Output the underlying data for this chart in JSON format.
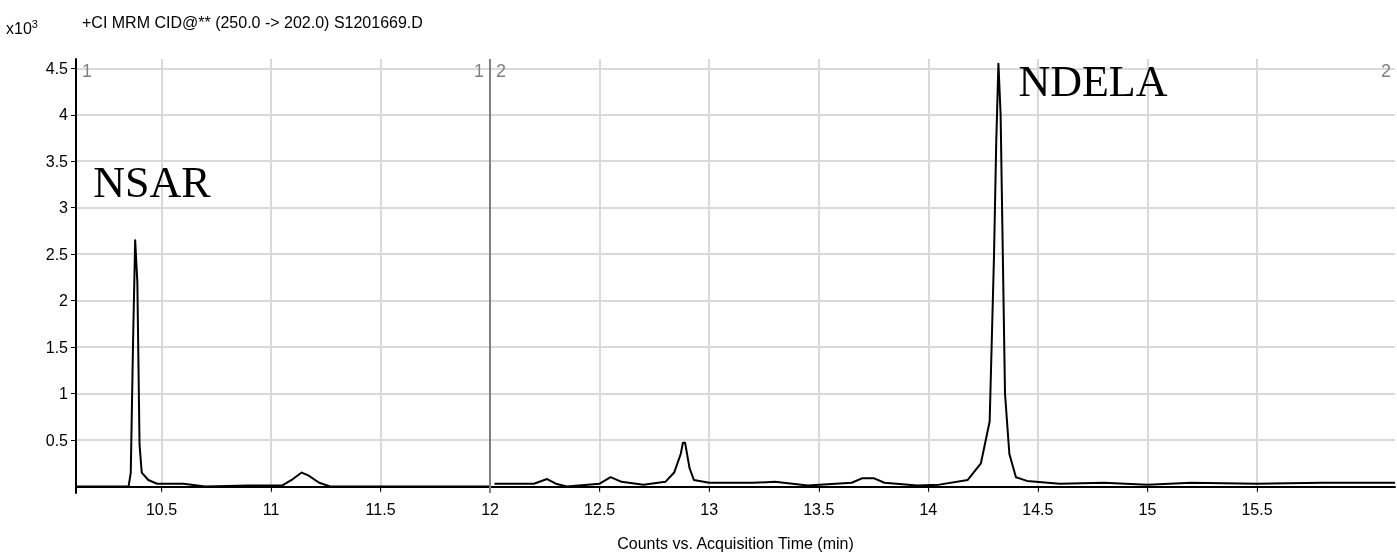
{
  "chart_data": {
    "type": "line",
    "title": "+CI MRM CID@** (250.0 -> 202.0) S1201669.D",
    "xlabel": "Counts vs. Acquisition Time (min)",
    "ylabel": "x10$^{3}$",
    "x": [
      10.11,
      10.35,
      10.36,
      10.37,
      10.38,
      10.39,
      10.4,
      10.41,
      10.44,
      10.48,
      10.6,
      10.7,
      10.9,
      11.05,
      11.1,
      11.14,
      11.17,
      11.22,
      11.27,
      11.5,
      12.0,
      12.01,
      12.02,
      12.2,
      12.26,
      12.3,
      12.35,
      12.5,
      12.55,
      12.6,
      12.7,
      12.8,
      12.84,
      12.87,
      12.88,
      12.89,
      12.91,
      12.93,
      13.0,
      13.2,
      13.3,
      13.45,
      13.65,
      13.7,
      13.75,
      13.8,
      13.95,
      14.05,
      14.18,
      14.24,
      14.28,
      14.3,
      14.31,
      14.32,
      14.33,
      14.34,
      14.35,
      14.37,
      14.4,
      14.45,
      14.6,
      14.8,
      15.0,
      15.2,
      15.5,
      15.8,
      16.13
    ],
    "series": [
      {
        "color": "#000000",
        "values": [
          0,
          0,
          0.15,
          1.5,
          2.65,
          2.2,
          0.45,
          0.15,
          0.07,
          0.03,
          0.03,
          0,
          0.01,
          0.01,
          0.08,
          0.15,
          0.12,
          0.04,
          0,
          0,
          0,
          null,
          0.03,
          0.03,
          0.08,
          0.03,
          0,
          0.03,
          0.1,
          0.05,
          0.02,
          0.05,
          0.15,
          0.35,
          0.47,
          0.47,
          0.2,
          0.07,
          0.04,
          0.04,
          0.05,
          0.01,
          0.04,
          0.09,
          0.09,
          0.04,
          0.01,
          0.02,
          0.07,
          0.25,
          0.7,
          2.5,
          3.7,
          4.55,
          4.0,
          2.5,
          1.0,
          0.35,
          0.1,
          0.06,
          0.03,
          0.04,
          0.02,
          0.04,
          0.03,
          0.04,
          0.04
        ]
      }
    ],
    "xlim": [
      10.11,
      16.13
    ],
    "xticks": [
      10.5,
      11,
      11.5,
      12,
      12.5,
      13,
      13.5,
      14,
      14.5,
      15,
      15.5
    ],
    "ylim": [
      -0.07,
      4.6
    ],
    "yticks": [
      0.5,
      1,
      1.5,
      2,
      2.5,
      3,
      3.5,
      4,
      4.5
    ],
    "ref_lines": [
      {
        "axis": "x",
        "value": 12,
        "color": "#808080"
      }
    ],
    "annotations": [
      {
        "text": "NSAR",
        "x": 10.38,
        "y": 2.65
      },
      {
        "text": "NDELA",
        "x": 14.32,
        "y": 4.55
      },
      "1",
      {
        "text": "1",
        "x": 12
      },
      {
        "text": "2",
        "x": 12
      },
      "2"
    ],
    "grid": true,
    "marker": "none",
    "line_style": "solid"
  }
}
